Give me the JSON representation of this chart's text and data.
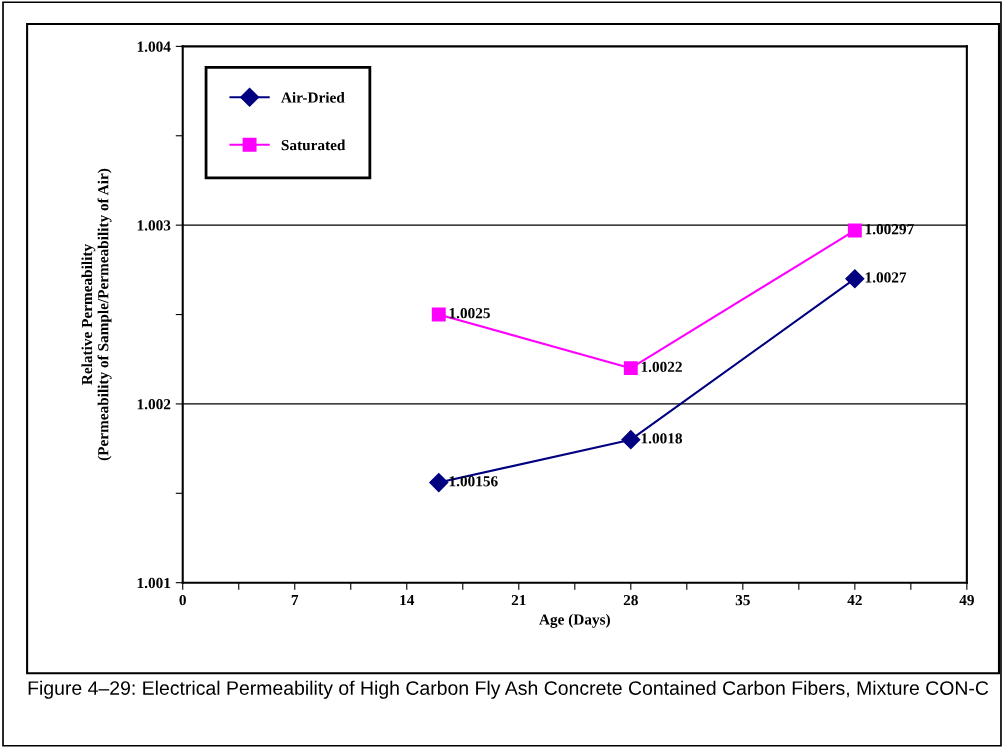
{
  "chart_data": {
    "type": "line",
    "xlabel": "Age (Days)",
    "ylabel": "Relative Permeability\n(Permeability of Sample/Permeability of Air)",
    "x": [
      16,
      28,
      42
    ],
    "series": [
      {
        "name": "Air-Dried",
        "color": "#000080",
        "marker": "diamond",
        "values": [
          1.00156,
          1.0018,
          1.0027
        ],
        "value_labels": [
          "1.00156",
          "1.0018",
          "1.0027"
        ]
      },
      {
        "name": "Saturated",
        "color": "#ff00ff",
        "marker": "square",
        "values": [
          1.0025,
          1.0022,
          1.00297
        ],
        "value_labels": [
          "1.0025",
          "1.0022",
          "1.00297"
        ]
      }
    ],
    "xlim": [
      0,
      49
    ],
    "xticks": [
      0,
      {
        "value": 3.5,
        "label": null
      },
      7,
      {
        "value": 10.5,
        "label": null
      },
      14,
      {
        "value": 17.5,
        "label": null
      },
      21,
      {
        "value": 24.5,
        "label": null
      },
      28,
      {
        "value": 31.5,
        "label": null
      },
      35,
      {
        "value": 38.5,
        "label": null
      },
      42,
      {
        "value": 45.5,
        "label": null
      },
      49
    ],
    "ylim": [
      1.001,
      1.004
    ],
    "yticks": [
      {
        "value": 1.001,
        "label": "1.001"
      },
      {
        "value": 1.0015,
        "label": null
      },
      {
        "value": 1.002,
        "label": "1.002"
      },
      {
        "value": 1.0025,
        "label": null
      },
      {
        "value": 1.003,
        "label": "1.003"
      },
      {
        "value": 1.0035,
        "label": null
      },
      {
        "value": 1.004,
        "label": "1.004"
      }
    ],
    "grid": "y",
    "legend": "top left",
    "annotations": [
      "Figure 4–29: Electrical Permeability of High Carbon Fly Ash Concrete Contained Carbon Fibers, Mixture CON-C"
    ]
  }
}
